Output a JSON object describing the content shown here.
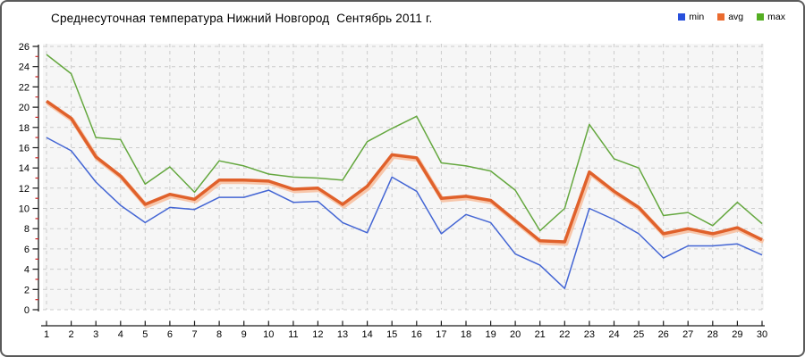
{
  "chart_data": {
    "type": "line",
    "title": "Среднесуточная температура Нижний Новгород  Сентябрь 2011 г.",
    "xlabel": "",
    "ylabel": "",
    "x": [
      1,
      2,
      3,
      4,
      5,
      6,
      7,
      8,
      9,
      10,
      11,
      12,
      13,
      14,
      15,
      16,
      17,
      18,
      19,
      20,
      21,
      22,
      23,
      24,
      25,
      26,
      27,
      28,
      29,
      30
    ],
    "ylim": [
      0,
      26
    ],
    "ytick_step": 2,
    "yminor_step": 1,
    "grid": "dashed",
    "legend_position": "top-right",
    "plot_bg": "#f6f6f6",
    "grid_color": "#cccccc",
    "axis_color": "#1a1a1a",
    "minor_tick_color": "#cc2222",
    "series": [
      {
        "name": "min",
        "color": "#4365d4",
        "legend_color": "#2850dc",
        "width": 1.5,
        "values": [
          17.0,
          15.7,
          12.6,
          10.3,
          8.6,
          10.1,
          9.9,
          11.1,
          11.1,
          11.8,
          10.6,
          10.7,
          8.6,
          7.6,
          13.1,
          11.7,
          7.5,
          9.4,
          8.6,
          5.5,
          4.4,
          2.1,
          10.0,
          8.9,
          7.5,
          5.1,
          6.3,
          6.3,
          6.5,
          5.4
        ]
      },
      {
        "name": "avg",
        "color": "#e0612b",
        "legend_color": "#ea6b2f",
        "halo_color": "#f7bd9c",
        "width": 3.5,
        "values": [
          20.6,
          18.9,
          15.1,
          13.2,
          10.4,
          11.4,
          10.9,
          12.8,
          12.8,
          12.7,
          11.9,
          12.0,
          10.4,
          12.2,
          15.3,
          15.0,
          11.0,
          11.2,
          10.8,
          8.8,
          6.8,
          6.7,
          13.6,
          11.7,
          10.1,
          7.5,
          8.0,
          7.5,
          8.1,
          6.9
        ]
      },
      {
        "name": "max",
        "color": "#64a73e",
        "legend_color": "#54ae22",
        "width": 1.5,
        "values": [
          25.2,
          23.3,
          17.0,
          16.8,
          12.4,
          14.1,
          11.6,
          14.7,
          14.2,
          13.4,
          13.1,
          13.0,
          12.8,
          16.6,
          17.9,
          19.1,
          14.5,
          14.2,
          13.7,
          11.8,
          7.8,
          10.0,
          18.3,
          14.9,
          14.0,
          9.3,
          9.6,
          8.3,
          10.6,
          8.5
        ]
      }
    ]
  }
}
